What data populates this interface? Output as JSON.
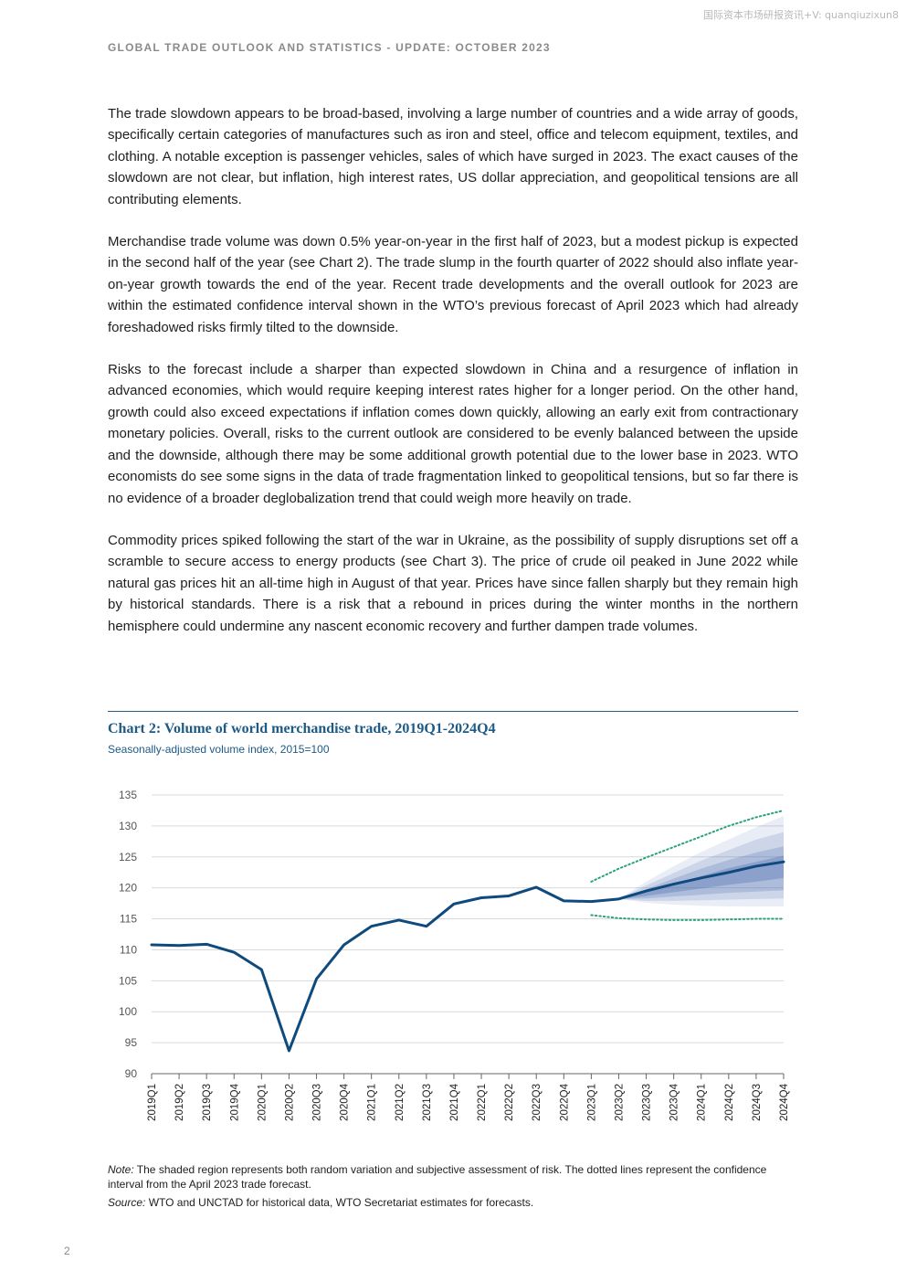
{
  "watermark": "国际资本市场研报资讯+V: quanqiuzixun8",
  "running_header": "GLOBAL TRADE OUTLOOK AND STATISTICS - UPDATE: OCTOBER 2023",
  "paragraphs": [
    "The trade slowdown appears to be broad-based, involving a large number of countries and a wide array of goods, specifically certain categories of manufactures such as iron and steel, office and telecom equipment, textiles, and clothing. A notable exception is passenger vehicles, sales of which have surged in 2023. The exact causes of the slowdown are not clear, but inflation, high interest rates, US dollar appreciation, and geopolitical tensions are all contributing elements.",
    "Merchandise trade volume was down 0.5% year-on-year in the first half of 2023, but a modest pickup is expected in the second half of the year (see Chart 2). The trade slump in the fourth quarter of 2022 should also inflate year-on-year growth towards the end of the year. Recent trade developments and the overall outlook for 2023 are within the estimated confidence interval shown in the WTO’s previous forecast of April 2023 which had already foreshadowed risks firmly tilted to the downside.",
    "Risks to the forecast include a sharper than expected slowdown in China and a resurgence of inflation in advanced economies, which would require keeping interest rates higher for a longer period. On the other hand, growth could also exceed expectations if inflation comes down quickly, allowing an early exit from contractionary monetary policies. Overall, risks to the current outlook are considered to be evenly balanced between the upside and the downside, although there may be some additional growth potential due to the lower base in 2023. WTO economists do see some signs in the data of trade fragmentation linked to geopolitical tensions, but so far there is no evidence of a broader deglobalization trend that could weigh more heavily on trade.",
    "Commodity prices spiked following the start of the war in Ukraine, as the possibility of supply disruptions set off a scramble to secure access to energy products (see Chart 3). The price of crude oil peaked in June 2022 while natural gas prices hit an all-time high in August of that year. Prices have since fallen sharply but they remain high by historical standards. There is a risk that a rebound in prices during the winter months in the northern hemisphere could undermine any nascent economic recovery and further dampen trade volumes."
  ],
  "chart_data": {
    "type": "line",
    "title": "Chart 2: Volume of world merchandise trade, 2019Q1-2024Q4",
    "subtitle": "Seasonally-adjusted volume index, 2015=100",
    "categories": [
      "2019Q1",
      "2019Q2",
      "2019Q3",
      "2019Q4",
      "2020Q1",
      "2020Q2",
      "2020Q3",
      "2020Q4",
      "2021Q1",
      "2021Q2",
      "2021Q3",
      "2021Q4",
      "2022Q1",
      "2022Q2",
      "2022Q3",
      "2022Q4",
      "2023Q1",
      "2023Q2",
      "2023Q3",
      "2023Q4",
      "2024Q1",
      "2024Q2",
      "2024Q3",
      "2024Q4"
    ],
    "y_ticks": [
      90,
      95,
      100,
      105,
      110,
      115,
      120,
      125,
      130,
      135
    ],
    "ylim": [
      90,
      135
    ],
    "grid": true,
    "series": [
      {
        "values": [
          110.8,
          110.7,
          110.9,
          109.6,
          106.8,
          93.7,
          105.3,
          110.8,
          113.8,
          114.8,
          113.8,
          117.4,
          118.4,
          118.7,
          120.1,
          117.9,
          117.8,
          118.2,
          119.5,
          120.6,
          121.6,
          122.5,
          123.5,
          124.2
        ],
        "color": "#0f4a7e"
      }
    ],
    "fan_bands": {
      "start_index": 17,
      "color": "#4d6fb0",
      "layers": [
        {
          "opacity": 0.12,
          "lower": [
            118.2,
            117.6,
            117.3,
            117.1,
            117.0,
            117.0,
            117.0
          ],
          "upper": [
            118.2,
            121.0,
            123.5,
            125.8,
            127.8,
            129.8,
            131.6
          ]
        },
        {
          "opacity": 0.18,
          "lower": [
            118.2,
            117.9,
            117.9,
            118.0,
            118.1,
            118.2,
            118.3
          ],
          "upper": [
            118.2,
            120.4,
            122.4,
            124.4,
            126.1,
            127.8,
            129.0
          ]
        },
        {
          "opacity": 0.25,
          "lower": [
            118.2,
            118.3,
            118.6,
            118.9,
            119.2,
            119.4,
            119.6
          ],
          "upper": [
            118.2,
            119.8,
            121.5,
            123.1,
            124.5,
            125.7,
            126.7
          ]
        },
        {
          "opacity": 0.35,
          "lower": [
            118.2,
            118.7,
            119.3,
            119.9,
            120.5,
            121.0,
            121.6
          ],
          "upper": [
            118.2,
            119.3,
            120.7,
            121.9,
            123.2,
            124.2,
            125.2
          ]
        }
      ]
    },
    "confidence_interval": {
      "start_index": 16,
      "color": "#2aa37a",
      "upper": [
        121.0,
        123.1,
        124.9,
        126.6,
        128.3,
        130.0,
        131.4,
        132.5
      ],
      "lower": [
        115.6,
        115.1,
        114.9,
        114.8,
        114.8,
        114.9,
        115.0,
        115.0
      ]
    }
  },
  "note": {
    "label": "Note:",
    "text": " The shaded region represents both random variation and subjective assessment of risk. The dotted lines represent the confidence interval from the April 2023 trade forecast."
  },
  "source": {
    "label": "Source:",
    "text": " WTO and UNCTAD for historical data, WTO Secretariat estimates for forecasts."
  },
  "page_number": "2"
}
